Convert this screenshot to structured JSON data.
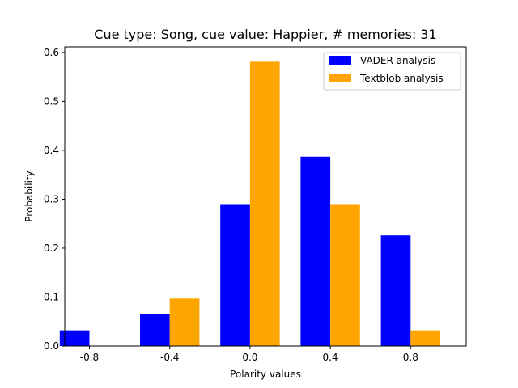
{
  "chart_data": {
    "type": "bar",
    "title": "Cue type: Song, cue value: Happier, # memories: 31",
    "xlabel": "Polarity values",
    "ylabel": "Probability",
    "categories": [
      "-0.8",
      "-0.4",
      "0.0",
      "0.4",
      "0.8"
    ],
    "series": [
      {
        "name": "VADER analysis",
        "color": "#0000ff",
        "values": [
          0.032,
          0.065,
          0.29,
          0.387,
          0.226
        ]
      },
      {
        "name": "Textblob analysis",
        "color": "#ffa500",
        "values": [
          0.0,
          0.097,
          0.581,
          0.29,
          0.032
        ]
      }
    ],
    "ylim": [
      0,
      0.6113
    ],
    "yticks": [
      "0.0",
      "0.1",
      "0.2",
      "0.3",
      "0.4",
      "0.5",
      "0.6"
    ],
    "grid": false,
    "legend": "top-right"
  }
}
